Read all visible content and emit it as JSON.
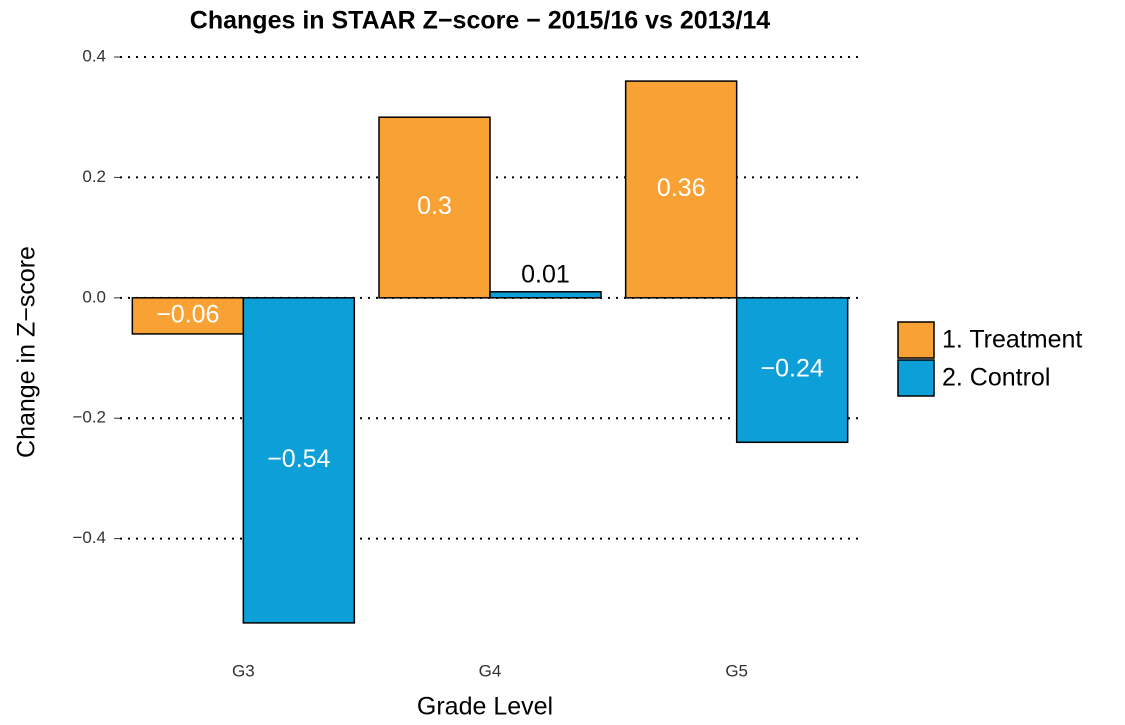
{
  "chart_data": {
    "type": "bar",
    "title": "Changes in STAAR Z−score − 2015/16 vs 2013/14",
    "x_label": "Grade Level",
    "y_label": "Change in Z−score",
    "categories": [
      "G3",
      "G4",
      "G5"
    ],
    "series": [
      {
        "name": "1. Treatment",
        "color": "#f8a134",
        "values": [
          -0.06,
          0.3,
          0.36
        ],
        "value_labels": [
          "−0.06",
          "0.3",
          "0.36"
        ]
      },
      {
        "name": "2. Control",
        "color": "#0d9fd8",
        "values": [
          -0.54,
          0.01,
          -0.24
        ],
        "value_labels": [
          "−0.54",
          "0.01",
          "−0.24"
        ]
      }
    ],
    "ylim": [
      -0.585,
      0.405
    ],
    "yticks": [
      {
        "value": -0.4,
        "label": "−0.4"
      },
      {
        "value": -0.2,
        "label": "−0.2"
      },
      {
        "value": 0,
        "label": "0.0"
      },
      0.2,
      0.4
    ],
    "grid": true,
    "legend": "right"
  }
}
